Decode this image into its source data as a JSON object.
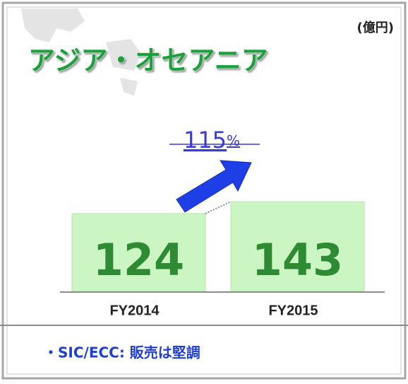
{
  "chart_data": {
    "type": "bar",
    "title": "アジア・オセアニア",
    "unit": "(億円)",
    "annotation": "115%",
    "note": "・SIC/ECC: 販売は堅調",
    "categories": [
      "FY2014",
      "FY2015"
    ],
    "values": [
      124,
      143
    ],
    "color": "#ccf5c4",
    "label_color": "#2e8b34"
  }
}
